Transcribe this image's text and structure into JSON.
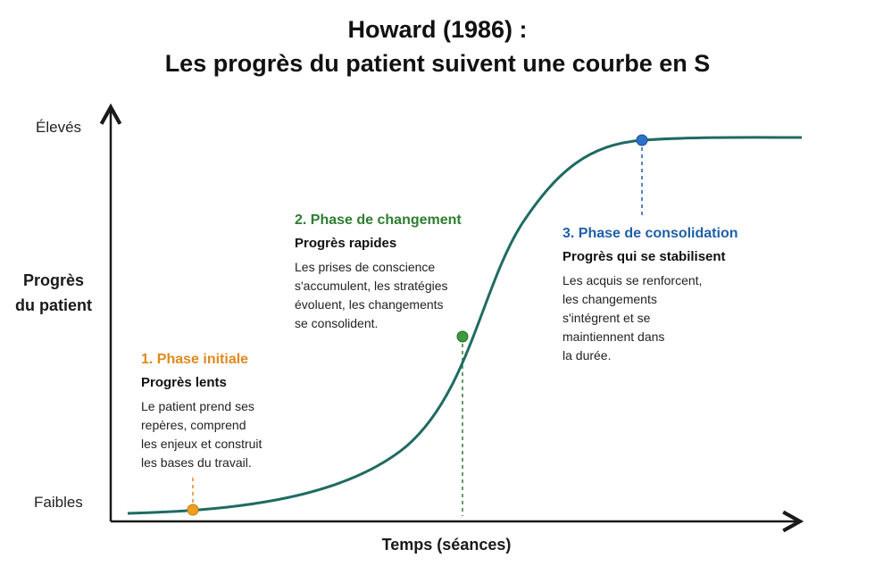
{
  "title": {
    "line1": "Howard (1986) :",
    "line2": "Les progrès du patient suivent une courbe en S"
  },
  "axes": {
    "y_title_line1": "Progrès",
    "y_title_line2": "du patient",
    "y_high_label": "Élevés",
    "y_low_label": "Faibles",
    "x_title": "Temps (séances)"
  },
  "phases": [
    {
      "title": "1. Phase initiale",
      "subtitle": "Progrès lents",
      "description": [
        "Le patient prend ses",
        "repères, comprend",
        "les enjeux et construit",
        "les bases du travail."
      ],
      "color": "#e08a1e"
    },
    {
      "title": "2. Phase de changement",
      "subtitle": "Progrès rapides",
      "description": [
        "Les prises de conscience",
        "s'accumulent, les stratégies",
        "évoluent, les changements",
        "se consolident."
      ],
      "color": "#2e7d32"
    },
    {
      "title": "3. Phase de consolidation",
      "subtitle": "Progrès qui se stabilisent",
      "description": [
        "Les acquis se renforcent,",
        "les changements",
        "s'intégrent et se",
        "maintiennent dans",
        "la durée."
      ],
      "color": "#1f5fa8"
    }
  ],
  "curve_color": "#1f6b62"
}
